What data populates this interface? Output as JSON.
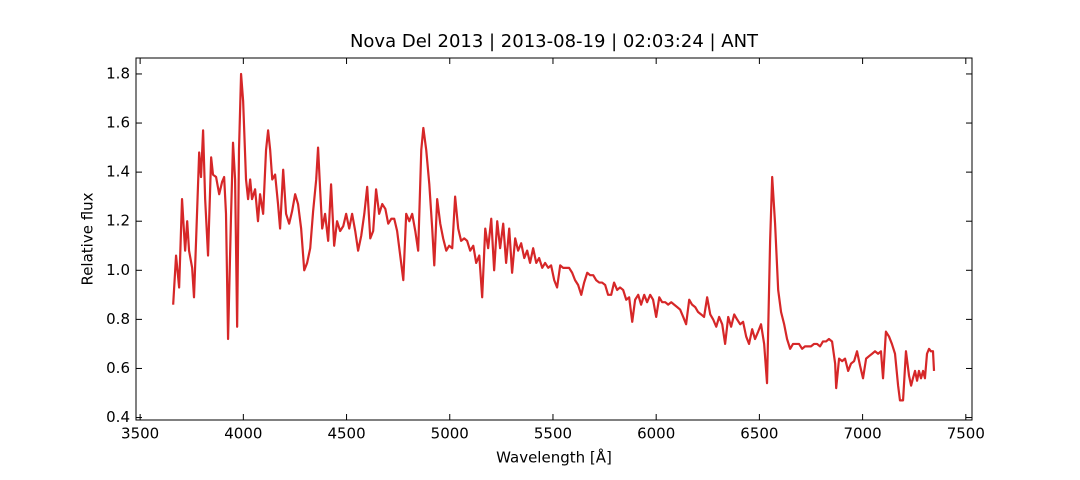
{
  "chart_data": {
    "type": "line",
    "title": "Nova Del 2013 | 2013-08-19 | 02:03:24 | ANT",
    "x_label": "Wavelength [Å]",
    "y_label": "Relative flux",
    "xlim": [
      3480,
      7530
    ],
    "ylim": [
      0.39,
      1.865
    ],
    "xticks": [
      3500,
      4000,
      4500,
      5000,
      5500,
      6000,
      6500,
      7000,
      7500
    ],
    "yticks": [
      0.4,
      0.6,
      0.8,
      {
        "value": 1.0,
        "label": "1.0"
      },
      1.2,
      1.4,
      1.6,
      1.8
    ],
    "series": [
      {
        "color": "#d62728",
        "x": [
          3660,
          3674,
          3689,
          3703,
          3718,
          3728,
          3737,
          3752,
          3761,
          3771,
          3786,
          3795,
          3805,
          3815,
          3829,
          3844,
          3853,
          3868,
          3883,
          3897,
          3907,
          3916,
          3926,
          3940,
          3950,
          3960,
          3970,
          3979,
          3989,
          3999,
          4013,
          4023,
          4033,
          4042,
          4057,
          4071,
          4081,
          4096,
          4110,
          4120,
          4130,
          4140,
          4154,
          4168,
          4178,
          4193,
          4207,
          4222,
          4236,
          4251,
          4265,
          4280,
          4295,
          4309,
          4324,
          4338,
          4353,
          4362,
          4372,
          4382,
          4396,
          4411,
          4425,
          4440,
          4454,
          4469,
          4484,
          4498,
          4513,
          4527,
          4542,
          4556,
          4571,
          4586,
          4600,
          4615,
          4629,
          4643,
          4658,
          4673,
          4688,
          4702,
          4717,
          4731,
          4745,
          4760,
          4775,
          4789,
          4804,
          4818,
          4833,
          4847,
          4862,
          4872,
          4886,
          4901,
          4915,
          4925,
          4939,
          4954,
          4968,
          4983,
          4997,
          5012,
          5026,
          5041,
          5055,
          5070,
          5084,
          5099,
          5114,
          5128,
          5143,
          5157,
          5172,
          5186,
          5201,
          5215,
          5230,
          5244,
          5259,
          5273,
          5288,
          5302,
          5317,
          5331,
          5346,
          5361,
          5375,
          5389,
          5404,
          5419,
          5433,
          5448,
          5462,
          5477,
          5491,
          5506,
          5520,
          5535,
          5549,
          5564,
          5578,
          5593,
          5607,
          5622,
          5637,
          5651,
          5666,
          5680,
          5695,
          5709,
          5724,
          5738,
          5753,
          5767,
          5782,
          5796,
          5811,
          5825,
          5840,
          5855,
          5869,
          5884,
          5898,
          5913,
          5927,
          5942,
          5956,
          5971,
          5985,
          6000,
          6015,
          6029,
          6044,
          6058,
          6073,
          6087,
          6102,
          6116,
          6131,
          6145,
          6160,
          6174,
          6189,
          6203,
          6218,
          6232,
          6247,
          6262,
          6276,
          6291,
          6305,
          6320,
          6334,
          6349,
          6363,
          6378,
          6392,
          6407,
          6421,
          6436,
          6450,
          6465,
          6479,
          6494,
          6508,
          6523,
          6537,
          6552,
          6562,
          6576,
          6591,
          6605,
          6620,
          6634,
          6649,
          6663,
          6678,
          6692,
          6707,
          6721,
          6736,
          6750,
          6765,
          6779,
          6794,
          6808,
          6823,
          6837,
          6852,
          6867,
          6872,
          6886,
          6901,
          6915,
          6930,
          6944,
          6959,
          6973,
          6988,
          7002,
          7017,
          7031,
          7046,
          7060,
          7075,
          7089,
          7099,
          7113,
          7128,
          7142,
          7157,
          7172,
          7181,
          7196,
          7210,
          7225,
          7235,
          7244,
          7254,
          7264,
          7273,
          7283,
          7293,
          7302,
          7312,
          7322,
          7331,
          7341,
          7346
        ],
        "values": [
          0.86,
          1.06,
          0.93,
          1.29,
          1.08,
          1.2,
          1.08,
          1.01,
          0.89,
          1.12,
          1.48,
          1.38,
          1.57,
          1.29,
          1.06,
          1.46,
          1.39,
          1.38,
          1.31,
          1.36,
          1.38,
          1.23,
          0.72,
          1.21,
          1.52,
          1.37,
          0.77,
          1.49,
          1.8,
          1.69,
          1.37,
          1.29,
          1.37,
          1.29,
          1.33,
          1.2,
          1.31,
          1.23,
          1.49,
          1.57,
          1.49,
          1.37,
          1.39,
          1.27,
          1.17,
          1.41,
          1.23,
          1.19,
          1.24,
          1.31,
          1.27,
          1.17,
          1.0,
          1.03,
          1.09,
          1.24,
          1.37,
          1.5,
          1.33,
          1.17,
          1.23,
          1.12,
          1.35,
          1.1,
          1.2,
          1.16,
          1.18,
          1.23,
          1.17,
          1.23,
          1.16,
          1.08,
          1.14,
          1.23,
          1.34,
          1.13,
          1.16,
          1.33,
          1.23,
          1.27,
          1.25,
          1.19,
          1.21,
          1.21,
          1.16,
          1.06,
          0.96,
          1.23,
          1.2,
          1.23,
          1.16,
          1.08,
          1.49,
          1.58,
          1.49,
          1.35,
          1.17,
          1.02,
          1.29,
          1.19,
          1.13,
          1.08,
          1.1,
          1.09,
          1.3,
          1.17,
          1.12,
          1.13,
          1.12,
          1.08,
          1.1,
          1.03,
          1.06,
          0.89,
          1.17,
          1.09,
          1.21,
          1.0,
          1.2,
          1.09,
          1.19,
          1.03,
          1.17,
          0.99,
          1.13,
          1.08,
          1.11,
          1.05,
          1.08,
          1.03,
          1.09,
          1.03,
          1.05,
          1.01,
          1.03,
          1.01,
          1.02,
          0.96,
          0.93,
          1.02,
          1.01,
          1.01,
          1.01,
          0.99,
          0.96,
          0.94,
          0.9,
          0.95,
          0.99,
          0.98,
          0.98,
          0.96,
          0.95,
          0.95,
          0.94,
          0.9,
          0.9,
          0.95,
          0.92,
          0.93,
          0.92,
          0.88,
          0.89,
          0.79,
          0.88,
          0.9,
          0.86,
          0.9,
          0.87,
          0.9,
          0.88,
          0.81,
          0.89,
          0.87,
          0.87,
          0.86,
          0.87,
          0.86,
          0.85,
          0.84,
          0.81,
          0.78,
          0.88,
          0.86,
          0.85,
          0.83,
          0.82,
          0.81,
          0.89,
          0.82,
          0.8,
          0.77,
          0.81,
          0.78,
          0.7,
          0.81,
          0.77,
          0.82,
          0.8,
          0.78,
          0.79,
          0.73,
          0.7,
          0.76,
          0.72,
          0.75,
          0.78,
          0.7,
          0.54,
          1.12,
          1.38,
          1.19,
          0.92,
          0.83,
          0.78,
          0.72,
          0.68,
          0.7,
          0.7,
          0.7,
          0.68,
          0.69,
          0.69,
          0.69,
          0.7,
          0.7,
          0.69,
          0.71,
          0.71,
          0.72,
          0.71,
          0.62,
          0.52,
          0.64,
          0.63,
          0.64,
          0.59,
          0.62,
          0.63,
          0.67,
          0.61,
          0.56,
          0.64,
          0.65,
          0.66,
          0.67,
          0.66,
          0.67,
          0.56,
          0.75,
          0.73,
          0.7,
          0.66,
          0.53,
          0.47,
          0.47,
          0.67,
          0.57,
          0.53,
          0.56,
          0.59,
          0.55,
          0.59,
          0.56,
          0.59,
          0.56,
          0.66,
          0.68,
          0.67,
          0.67,
          0.59
        ]
      }
    ]
  }
}
